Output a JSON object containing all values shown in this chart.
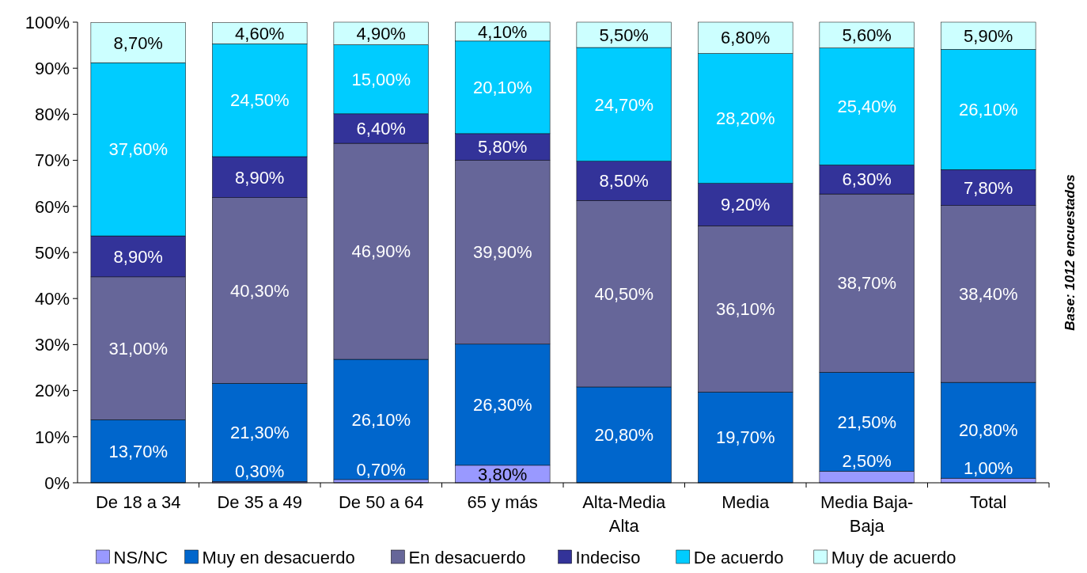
{
  "chart_data": {
    "type": "bar",
    "stacked": true,
    "categories": [
      "De 18 a 34",
      "De 35 a 49",
      "De 50 a 64",
      "65 y más",
      "Alta-Media Alta",
      "Media",
      "Media Baja-Baja",
      "Total"
    ],
    "ylim": [
      0,
      100
    ],
    "yticks": [
      {
        "value": 0,
        "label": "0%"
      },
      {
        "value": 10,
        "label": "10%"
      },
      {
        "value": 20,
        "label": "20%"
      },
      {
        "value": 30,
        "label": "30%"
      },
      {
        "value": 40,
        "label": "40%"
      },
      {
        "value": 50,
        "label": "50%"
      },
      {
        "value": 60,
        "label": "60%"
      },
      {
        "value": 70,
        "label": "70%"
      },
      {
        "value": 80,
        "label": "80%"
      },
      {
        "value": 90,
        "label": "90%"
      },
      {
        "value": 100,
        "label": "100%"
      }
    ],
    "grid": false,
    "legend": "bottom",
    "annotations": [
      "Base: 1012 encuestados"
    ],
    "series": [
      {
        "name": "NS/NC",
        "color": "#9999ff",
        "values": [
          null,
          0.3,
          0.7,
          3.8,
          null,
          null,
          2.5,
          1.0
        ],
        "value_labels": [
          null,
          "0,30%",
          "0,70%",
          "3,80%",
          null,
          null,
          "2,50%",
          "1,00%"
        ]
      },
      {
        "name": "Muy en desacuerdo",
        "color": "#0066cc",
        "values": [
          13.7,
          21.3,
          26.1,
          26.3,
          20.8,
          19.7,
          21.5,
          20.8
        ],
        "value_labels": [
          "13,70%",
          "21,30%",
          "26,10%",
          "26,30%",
          "20,80%",
          "19,70%",
          "21,50%",
          "20,80%"
        ]
      },
      {
        "name": "En desacuerdo",
        "color": "#666699",
        "values": [
          31.0,
          40.3,
          46.9,
          39.9,
          40.5,
          36.1,
          38.7,
          38.4
        ],
        "value_labels": [
          "31,00%",
          "40,30%",
          "46,90%",
          "39,90%",
          "40,50%",
          "36,10%",
          "38,70%",
          "38,40%"
        ]
      },
      {
        "name": "Indeciso",
        "color": "#333399",
        "values": [
          8.9,
          8.9,
          6.4,
          5.8,
          8.5,
          9.2,
          6.3,
          7.8
        ],
        "value_labels": [
          "8,90%",
          "8,90%",
          "6,40%",
          "5,80%",
          "8,50%",
          "9,20%",
          "6,30%",
          "7,80%"
        ]
      },
      {
        "name": "De acuerdo",
        "color": "#00ccff",
        "values": [
          37.6,
          24.5,
          15.0,
          20.1,
          24.7,
          28.2,
          25.4,
          26.1
        ],
        "value_labels": [
          "37,60%",
          "24,50%",
          "15,00%",
          "20,10%",
          "24,70%",
          "28,20%",
          "25,40%",
          "26,10%"
        ]
      },
      {
        "name": "Muy de acuerdo",
        "color": "#ccffff",
        "values": [
          8.7,
          4.6,
          4.9,
          4.1,
          5.5,
          6.8,
          5.6,
          5.9
        ],
        "value_labels": [
          "8,70%",
          "4,60%",
          "4,90%",
          "4,10%",
          "5,50%",
          "6,80%",
          "5,60%",
          "5,90%"
        ]
      }
    ]
  }
}
